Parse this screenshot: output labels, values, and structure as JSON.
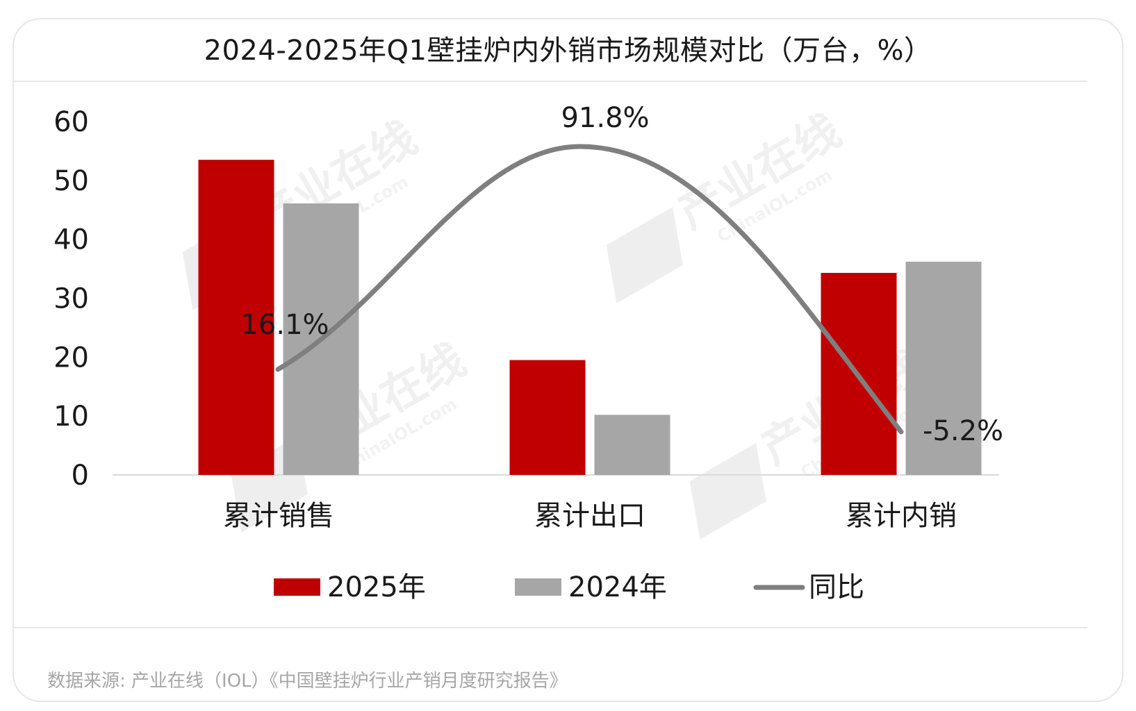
{
  "chart_data": {
    "type": "bar",
    "title": "2024-2025年Q1壁挂炉内外销市场规模对比（万台，%）",
    "categories": [
      "累计销售",
      "累计出口",
      "累计内销"
    ],
    "ylim": [
      0,
      60
    ],
    "yticks": [
      0,
      10,
      20,
      30,
      40,
      50,
      60
    ],
    "series": [
      {
        "name": "2025年",
        "color": "#c00000",
        "values": [
          53.5,
          19.5,
          34.3
        ]
      },
      {
        "name": "2024年",
        "color": "#a6a6a6",
        "values": [
          46.1,
          10.2,
          36.2
        ]
      }
    ],
    "line": {
      "name": "同比",
      "color": "#7f7f7f",
      "labels": [
        "16.1%",
        "91.8%",
        "-5.2%"
      ]
    },
    "legend": "bottom",
    "grid": false
  },
  "source": "数据来源: 产业在线（IOL）《中国壁挂炉行业产销月度研究报告》",
  "watermark": {
    "text": "产业在线",
    "sub": "ChinaIOL.com"
  }
}
